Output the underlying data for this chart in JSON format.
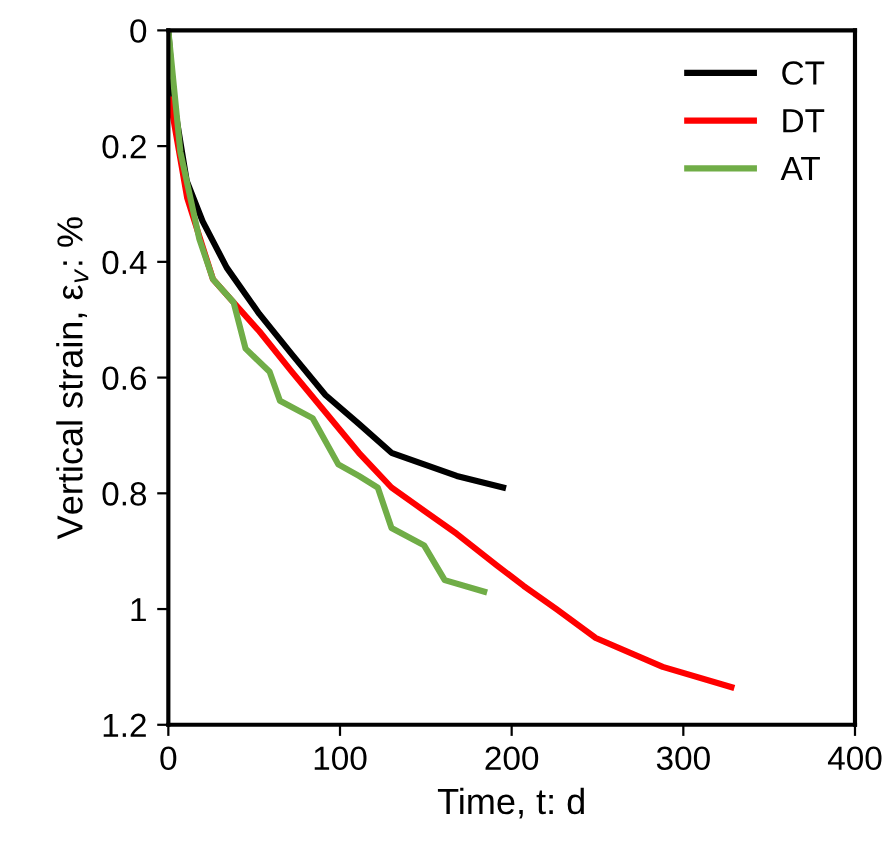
{
  "chart_data": {
    "type": "line",
    "xlabel": "Time, t: d",
    "ylabel": "Vertical strain, ε$_{v}$: %",
    "xlim": [
      0,
      400
    ],
    "xticks": [
      0,
      100,
      200,
      300,
      400
    ],
    "ylim": [
      1.2,
      0
    ],
    "yticks": [
      0,
      0.2,
      0.4,
      0.6,
      0.8,
      1,
      1.2
    ],
    "legend": "top right",
    "grid": false,
    "series": [
      {
        "name": "CT",
        "color": "#000000",
        "x": [
          0,
          3,
          10.7,
          20,
          34,
          53,
          72,
          91.5,
          111,
          130,
          149,
          168,
          195
        ],
        "values": [
          0,
          0.12,
          0.26,
          0.33,
          0.41,
          0.49,
          0.56,
          0.63,
          0.68,
          0.73,
          0.75,
          0.77,
          0.79
        ]
      },
      {
        "name": "DT",
        "color": "#ff0000",
        "x": [
          1,
          11,
          26,
          53,
          72,
          91.5,
          111,
          130,
          149,
          168,
          191.5,
          207,
          226,
          249,
          288,
          328
        ],
        "values": [
          0.12,
          0.29,
          0.43,
          0.52,
          0.59,
          0.66,
          0.73,
          0.79,
          0.83,
          0.87,
          0.925,
          0.96,
          1.0,
          1.05,
          1.1,
          1.135
        ]
      },
      {
        "name": "AT",
        "color": "#70ad47",
        "x": [
          0,
          7,
          18,
          26,
          38,
          45,
          59,
          65,
          84,
          99,
          111,
          122,
          130,
          149,
          161,
          184
        ],
        "values": [
          0,
          0.21,
          0.36,
          0.43,
          0.47,
          0.55,
          0.59,
          0.64,
          0.67,
          0.75,
          0.77,
          0.79,
          0.86,
          0.89,
          0.95,
          0.97
        ]
      }
    ]
  }
}
